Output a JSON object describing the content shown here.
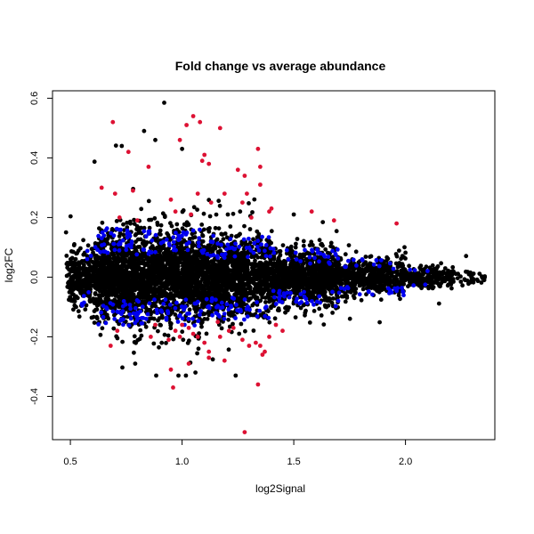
{
  "chart_data": {
    "type": "scatter",
    "title": "Fold change vs average abundance",
    "xlabel": "log2Signal",
    "ylabel": "log2FC",
    "xlim": [
      0.42,
      2.4
    ],
    "ylim": [
      -0.545,
      0.625
    ],
    "x_ticks": [
      0.5,
      1.0,
      1.5,
      2.0
    ],
    "x_tick_labels": [
      "0.5",
      "1.0",
      "1.5",
      "2.0"
    ],
    "y_ticks": [
      -0.4,
      -0.2,
      0.0,
      0.2,
      0.4,
      0.6
    ],
    "y_tick_labels": [
      "-0.4",
      "-0.2",
      "0.0",
      "0.2",
      "0.4",
      "0.6"
    ],
    "grid": false,
    "legend": "none",
    "colors": {
      "black": "#000000",
      "blue": "#0000ee",
      "red": "#dd1133"
    },
    "series": [
      {
        "color_key": "red",
        "points": [
          [
            0.69,
            0.52
          ],
          [
            0.76,
            0.42
          ],
          [
            0.78,
            0.29
          ],
          [
            0.7,
            0.28
          ],
          [
            0.72,
            0.2
          ],
          [
            0.85,
            0.37
          ],
          [
            0.95,
            0.26
          ],
          [
            0.97,
            0.22
          ],
          [
            0.99,
            0.46
          ],
          [
            1.02,
            0.51
          ],
          [
            1.05,
            0.54
          ],
          [
            1.08,
            0.52
          ],
          [
            1.1,
            0.41
          ],
          [
            1.12,
            0.38
          ],
          [
            1.17,
            0.5
          ],
          [
            1.09,
            0.39
          ],
          [
            1.07,
            0.28
          ],
          [
            1.13,
            0.25
          ],
          [
            1.19,
            0.28
          ],
          [
            1.25,
            0.36
          ],
          [
            1.28,
            0.34
          ],
          [
            1.29,
            0.28
          ],
          [
            1.27,
            0.25
          ],
          [
            1.34,
            0.43
          ],
          [
            1.35,
            0.37
          ],
          [
            1.35,
            0.31
          ],
          [
            1.39,
            0.22
          ],
          [
            1.4,
            0.23
          ],
          [
            1.58,
            0.22
          ],
          [
            1.68,
            0.19
          ],
          [
            1.96,
            0.18
          ],
          [
            0.64,
            0.3
          ],
          [
            0.8,
            0.19
          ],
          [
            1.04,
            0.21
          ],
          [
            1.31,
            0.2
          ],
          [
            0.68,
            -0.23
          ],
          [
            0.86,
            -0.2
          ],
          [
            0.94,
            -0.21
          ],
          [
            0.97,
            -0.18
          ],
          [
            0.99,
            -0.2
          ],
          [
            1.0,
            -0.16
          ],
          [
            1.03,
            -0.17
          ],
          [
            1.05,
            -0.19
          ],
          [
            1.07,
            -0.2
          ],
          [
            1.1,
            -0.22
          ],
          [
            1.12,
            -0.25
          ],
          [
            1.17,
            -0.2
          ],
          [
            1.19,
            -0.28
          ],
          [
            1.21,
            -0.18
          ],
          [
            1.23,
            -0.17
          ],
          [
            1.27,
            -0.21
          ],
          [
            1.3,
            -0.23
          ],
          [
            1.33,
            -0.22
          ],
          [
            1.35,
            -0.23
          ],
          [
            1.36,
            -0.26
          ],
          [
            1.37,
            -0.25
          ],
          [
            1.39,
            -0.2
          ],
          [
            1.45,
            -0.18
          ],
          [
            0.95,
            -0.31
          ],
          [
            0.96,
            -0.37
          ],
          [
            1.03,
            -0.29
          ],
          [
            1.12,
            -0.27
          ],
          [
            1.34,
            -0.36
          ],
          [
            1.28,
            -0.52
          ],
          [
            0.71,
            -0.18
          ],
          [
            0.88,
            -0.16
          ],
          [
            1.16,
            -0.15
          ],
          [
            1.42,
            -0.16
          ]
        ]
      }
    ]
  }
}
